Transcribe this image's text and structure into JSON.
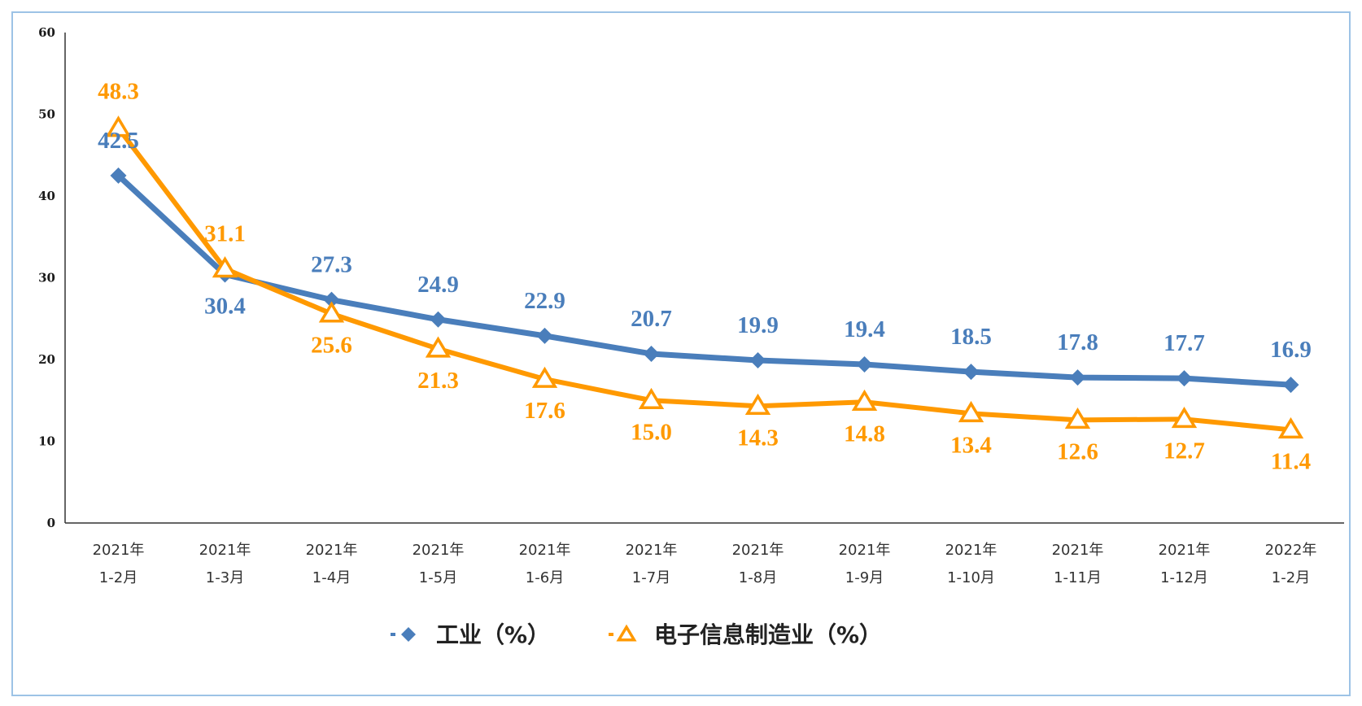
{
  "chart_data": {
    "type": "line",
    "categories": [
      [
        "2021年",
        "1-2月"
      ],
      [
        "2021年",
        "1-3月"
      ],
      [
        "2021年",
        "1-4月"
      ],
      [
        "2021年",
        "1-5月"
      ],
      [
        "2021年",
        "1-6月"
      ],
      [
        "2021年",
        "1-7月"
      ],
      [
        "2021年",
        "1-8月"
      ],
      [
        "2021年",
        "1-9月"
      ],
      [
        "2021年",
        "1-10月"
      ],
      [
        "2021年",
        "1-11月"
      ],
      [
        "2021年",
        "1-12月"
      ],
      [
        "2022年",
        "1-2月"
      ]
    ],
    "series": [
      {
        "name": "工业（%）",
        "color": "#4a7ebb",
        "marker": "diamond",
        "values": [
          42.5,
          30.4,
          27.3,
          24.9,
          22.9,
          20.7,
          19.9,
          19.4,
          18.5,
          17.8,
          17.7,
          16.9
        ]
      },
      {
        "name": "电子信息制造业（%）",
        "color": "#ff9900",
        "marker": "triangle",
        "values": [
          48.3,
          31.1,
          25.6,
          21.3,
          17.6,
          15.0,
          14.3,
          14.8,
          13.4,
          12.6,
          12.7,
          11.4
        ]
      }
    ],
    "ylim": [
      0,
      60
    ],
    "yticks": [
      0,
      10,
      20,
      30,
      40,
      50,
      60
    ],
    "legend": "bottom-center",
    "grid": false,
    "xlabel": "",
    "ylabel": "",
    "title": ""
  }
}
